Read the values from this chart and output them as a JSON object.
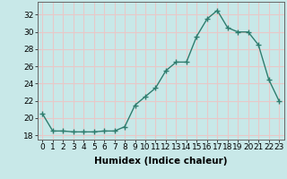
{
  "x": [
    0,
    1,
    2,
    3,
    4,
    5,
    6,
    7,
    8,
    9,
    10,
    11,
    12,
    13,
    14,
    15,
    16,
    17,
    18,
    19,
    20,
    21,
    22,
    23
  ],
  "y": [
    20.5,
    18.5,
    18.5,
    18.4,
    18.4,
    18.4,
    18.5,
    18.5,
    19.0,
    21.5,
    22.5,
    23.5,
    25.5,
    26.5,
    26.5,
    29.5,
    31.5,
    32.5,
    30.5,
    30.0,
    30.0,
    28.5,
    24.5,
    22.0
  ],
  "line_color": "#2e7d6e",
  "marker": "+",
  "marker_size": 4,
  "linewidth": 1.0,
  "bg_color": "#c8e8e8",
  "grid_color": "#e8c8c8",
  "xlabel": "Humidex (Indice chaleur)",
  "xlim": [
    -0.5,
    23.5
  ],
  "ylim": [
    17.5,
    33.5
  ],
  "yticks": [
    18,
    20,
    22,
    24,
    26,
    28,
    30,
    32
  ],
  "xtick_labels": [
    "0",
    "1",
    "2",
    "3",
    "4",
    "5",
    "6",
    "7",
    "8",
    "9",
    "10",
    "11",
    "12",
    "13",
    "14",
    "15",
    "16",
    "17",
    "18",
    "19",
    "20",
    "21",
    "22",
    "23"
  ],
  "xlabel_fontsize": 7.5,
  "tick_fontsize": 6.5
}
